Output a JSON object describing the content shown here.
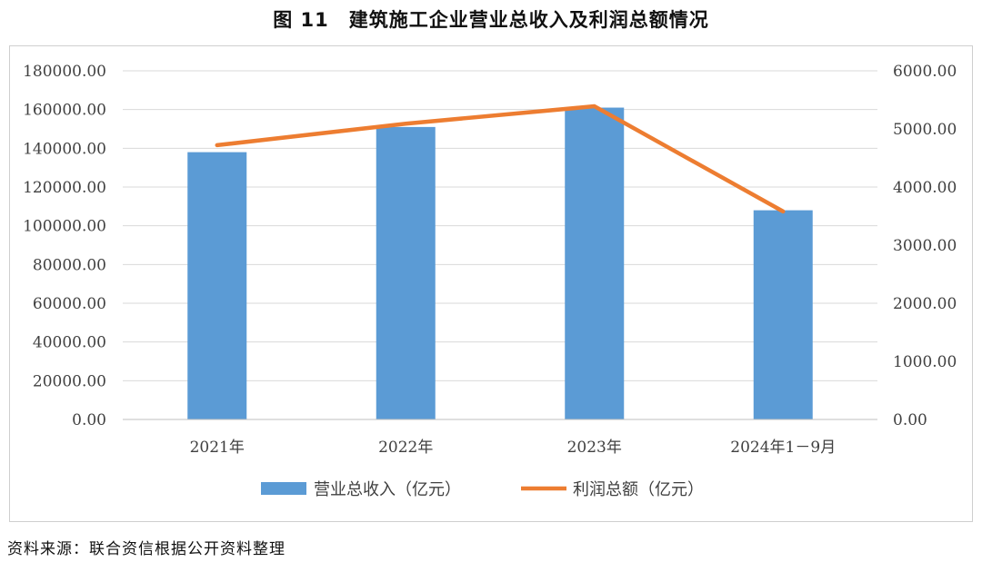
{
  "title": "图 11　建筑施工企业营业总收入及利润总额情况",
  "source_note": "资料来源：联合资信根据公开资料整理",
  "chart_data": {
    "type": "bar+line",
    "categories": [
      "2021年",
      "2022年",
      "2023年",
      "2024年1－9月"
    ],
    "series": [
      {
        "name": "营业总收入（亿元）",
        "type": "bar",
        "axis": "left",
        "values": [
          138000,
          151000,
          161000,
          108000
        ],
        "color": "#5b9bd5"
      },
      {
        "name": "利润总额（亿元）",
        "type": "line",
        "axis": "right",
        "values": [
          4720,
          5090,
          5390,
          3580
        ],
        "color": "#ed7d31"
      }
    ],
    "y_left": {
      "min": 0,
      "max": 180000,
      "step": 20000,
      "tick_labels": [
        "0.00",
        "20000.00",
        "40000.00",
        "60000.00",
        "80000.00",
        "100000.00",
        "120000.00",
        "140000.00",
        "160000.00",
        "180000.00"
      ]
    },
    "y_right": {
      "min": 0,
      "max": 6000,
      "step": 1000,
      "tick_labels": [
        "0.00",
        "1000.00",
        "2000.00",
        "3000.00",
        "4000.00",
        "5000.00",
        "6000.00"
      ]
    },
    "grid": true,
    "legend_position": "bottom"
  }
}
